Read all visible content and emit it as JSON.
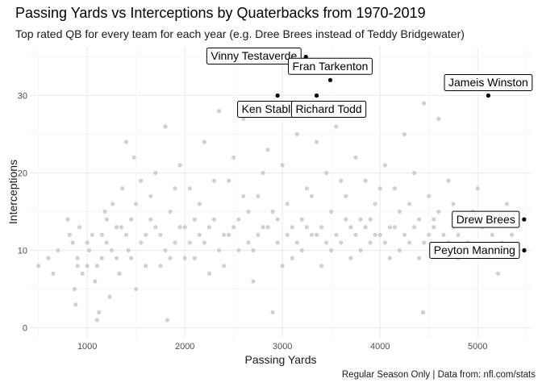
{
  "chart_data": {
    "type": "scatter",
    "title": "Passing Yards vs Interceptions by Quaterbacks from 1970-2019",
    "subtitle": "Top rated QB for every team for each year (e.g. Dree Brees instead of Teddy Bridgewater)",
    "caption": "Regular Season Only | Data from: nfl.com/stats",
    "xlabel": "Passing Yards",
    "ylabel": "Interceptions",
    "xlim": [
      420,
      5560
    ],
    "ylim": [
      -1.4,
      36.3
    ],
    "x_ticks": [
      1000,
      2000,
      3000,
      4000,
      5000
    ],
    "y_ticks": [
      0,
      10,
      20,
      30
    ],
    "grid": true,
    "colors": {
      "background_points": "#c8c8c8",
      "highlight_points": "#000000",
      "grid_major": "#ebebeb",
      "grid_minor": "#f5f5f5"
    },
    "highlighted": [
      {
        "name": "Vinny Testaverde",
        "x": 3240,
        "y": 35
      },
      {
        "name": "Fran Tarkenton",
        "x": 3490,
        "y": 32
      },
      {
        "name": "Jameis Winston",
        "x": 5109,
        "y": 30
      },
      {
        "name": "Ken Stabler",
        "x": 2950,
        "y": 30
      },
      {
        "name": "Richard Todd",
        "x": 3350,
        "y": 30
      },
      {
        "name": "Drew Brees",
        "x": 5476,
        "y": 14
      },
      {
        "name": "Peyton Manning",
        "x": 5477,
        "y": 10
      }
    ],
    "points": [
      [
        500,
        8
      ],
      [
        600,
        9
      ],
      [
        650,
        7
      ],
      [
        700,
        10
      ],
      [
        800,
        14
      ],
      [
        820,
        12
      ],
      [
        850,
        11
      ],
      [
        870,
        5
      ],
      [
        880,
        3
      ],
      [
        900,
        9
      ],
      [
        920,
        13
      ],
      [
        950,
        7
      ],
      [
        1000,
        8
      ],
      [
        1020,
        10
      ],
      [
        1050,
        12
      ],
      [
        1080,
        6
      ],
      [
        1100,
        1
      ],
      [
        1120,
        2
      ],
      [
        1150,
        9
      ],
      [
        1180,
        15
      ],
      [
        1200,
        11
      ],
      [
        1230,
        4
      ],
      [
        1260,
        16
      ],
      [
        1300,
        13
      ],
      [
        1330,
        7
      ],
      [
        1360,
        18
      ],
      [
        1400,
        24
      ],
      [
        1420,
        10
      ],
      [
        1450,
        14
      ],
      [
        1480,
        22
      ],
      [
        1500,
        5
      ],
      [
        1550,
        19
      ],
      [
        1600,
        12
      ],
      [
        1650,
        17
      ],
      [
        1700,
        20
      ],
      [
        1750,
        8
      ],
      [
        1800,
        26
      ],
      [
        1820,
        1
      ],
      [
        1850,
        15
      ],
      [
        1900,
        11
      ],
      [
        1950,
        21
      ],
      [
        2000,
        13
      ],
      [
        2050,
        18
      ],
      [
        2100,
        9
      ],
      [
        2150,
        16
      ],
      [
        2200,
        24
      ],
      [
        2250,
        7
      ],
      [
        2300,
        14
      ],
      [
        2350,
        28
      ],
      [
        2400,
        12
      ],
      [
        2450,
        19
      ],
      [
        2500,
        22
      ],
      [
        2550,
        10
      ],
      [
        2600,
        27
      ],
      [
        2650,
        15
      ],
      [
        2700,
        6
      ],
      [
        2750,
        17
      ],
      [
        2800,
        13
      ],
      [
        2850,
        23
      ],
      [
        2900,
        2
      ],
      [
        2950,
        11
      ],
      [
        3000,
        21
      ],
      [
        3050,
        16
      ],
      [
        3100,
        9
      ],
      [
        3150,
        25
      ],
      [
        3200,
        14
      ],
      [
        3250,
        18
      ],
      [
        3300,
        12
      ],
      [
        3350,
        24
      ],
      [
        3400,
        8
      ],
      [
        3450,
        20
      ],
      [
        3500,
        15
      ],
      [
        3550,
        26
      ],
      [
        3600,
        11
      ],
      [
        3650,
        17
      ],
      [
        3700,
        13
      ],
      [
        3750,
        22
      ],
      [
        3800,
        10
      ],
      [
        3850,
        19
      ],
      [
        3900,
        14
      ],
      [
        3950,
        16
      ],
      [
        4000,
        12
      ],
      [
        4050,
        21
      ],
      [
        4100,
        9
      ],
      [
        4150,
        18
      ],
      [
        4200,
        15
      ],
      [
        4250,
        25
      ],
      [
        4300,
        11
      ],
      [
        4350,
        20
      ],
      [
        4400,
        14
      ],
      [
        4440,
        2
      ],
      [
        4450,
        29
      ],
      [
        4500,
        17
      ],
      [
        4550,
        13
      ],
      [
        4600,
        27
      ],
      [
        4650,
        10
      ],
      [
        4700,
        19
      ],
      [
        4750,
        16
      ],
      [
        4800,
        12
      ],
      [
        4850,
        14
      ],
      [
        4900,
        11
      ],
      [
        4950,
        15
      ],
      [
        5000,
        18
      ],
      [
        5050,
        13
      ],
      [
        5080,
        14
      ],
      [
        5150,
        12
      ],
      [
        5208,
        7
      ],
      [
        5250,
        11
      ],
      [
        5300,
        16
      ],
      [
        5350,
        12
      ],
      [
        5400,
        14
      ],
      [
        900,
        8
      ],
      [
        1000,
        11
      ],
      [
        1100,
        8
      ],
      [
        1200,
        14
      ],
      [
        1300,
        9
      ],
      [
        1400,
        12
      ],
      [
        1500,
        16
      ],
      [
        1600,
        8
      ],
      [
        1700,
        13
      ],
      [
        1800,
        10
      ],
      [
        1900,
        18
      ],
      [
        2000,
        9
      ],
      [
        2100,
        14
      ],
      [
        2200,
        11
      ],
      [
        2300,
        19
      ],
      [
        2400,
        8
      ],
      [
        2500,
        13
      ],
      [
        2600,
        17
      ],
      [
        2700,
        10
      ],
      [
        2800,
        20
      ],
      [
        2900,
        15
      ],
      [
        3000,
        8
      ],
      [
        3100,
        13
      ],
      [
        3200,
        10
      ],
      [
        3300,
        17
      ],
      [
        3400,
        13
      ],
      [
        3500,
        10
      ],
      [
        3600,
        19
      ],
      [
        3700,
        9
      ],
      [
        3800,
        14
      ],
      [
        3900,
        11
      ],
      [
        4000,
        18
      ],
      [
        4100,
        13
      ],
      [
        4200,
        10
      ],
      [
        4300,
        16
      ],
      [
        4400,
        9
      ],
      [
        4500,
        12
      ],
      [
        4600,
        15
      ],
      [
        4700,
        11
      ],
      [
        4800,
        9
      ],
      [
        1150,
        12
      ],
      [
        1250,
        10
      ],
      [
        1350,
        13
      ],
      [
        1450,
        9
      ],
      [
        1550,
        11
      ],
      [
        1650,
        14
      ],
      [
        1750,
        12
      ],
      [
        1850,
        9
      ],
      [
        1950,
        13
      ],
      [
        2050,
        11
      ],
      [
        2150,
        12
      ],
      [
        2250,
        13
      ],
      [
        2350,
        10
      ],
      [
        2450,
        12
      ],
      [
        2550,
        14
      ],
      [
        2650,
        11
      ],
      [
        2750,
        12
      ],
      [
        2850,
        13
      ],
      [
        2950,
        14
      ],
      [
        3050,
        12
      ],
      [
        3150,
        11
      ],
      [
        3250,
        13
      ],
      [
        3350,
        12
      ],
      [
        3450,
        11
      ],
      [
        3550,
        12
      ],
      [
        3650,
        14
      ],
      [
        3750,
        12
      ],
      [
        3850,
        13
      ],
      [
        3950,
        12
      ],
      [
        4050,
        11
      ],
      [
        4150,
        13
      ],
      [
        4250,
        12
      ],
      [
        4350,
        13
      ],
      [
        4450,
        11
      ],
      [
        4550,
        14
      ],
      [
        4650,
        12
      ],
      [
        4750,
        13
      ]
    ]
  }
}
